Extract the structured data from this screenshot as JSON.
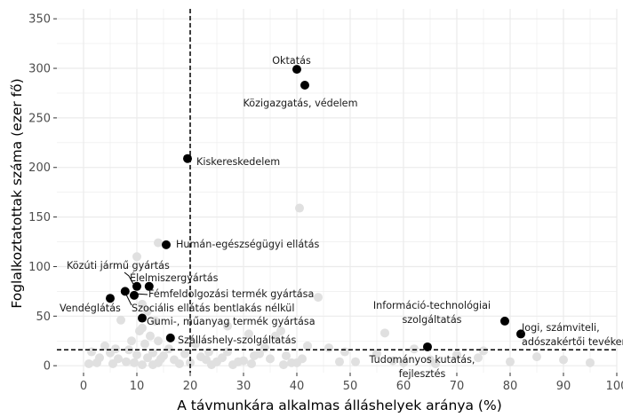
{
  "chart_data": {
    "type": "scatter",
    "xlabel": "A távmunkára alkalmas álláshelyek aránya (%)",
    "ylabel": "Foglalkoztatottak száma (ezer fő)",
    "xlim": [
      -5,
      100
    ],
    "ylim": [
      -7,
      360
    ],
    "x_ticks": [
      0,
      10,
      20,
      30,
      40,
      50,
      60,
      70,
      80,
      90,
      100
    ],
    "y_ticks": [
      0,
      50,
      100,
      150,
      200,
      250,
      300,
      350
    ],
    "grid": true,
    "reference_lines": {
      "vertical_x": 20,
      "horizontal_y": 16
    },
    "colors": {
      "highlight": "#000000",
      "background_points": "#e0e0e0",
      "grid": "#ebebeb"
    },
    "highlighted": [
      {
        "label": "Oktatás",
        "x": 40,
        "y": 299
      },
      {
        "label": "Közigazgatás, védelem",
        "x": 41.5,
        "y": 283
      },
      {
        "label": "Kiskereskedelem",
        "x": 19.5,
        "y": 209
      },
      {
        "label": "Humán-egészségügyi ellátás",
        "x": 15.5,
        "y": 122
      },
      {
        "label": "Közúti jármű gyártás",
        "x": 10,
        "y": 80
      },
      {
        "label": "Élelmiszergyártás",
        "x": 12.3,
        "y": 80
      },
      {
        "label": "Fémfeldolgozási termék gyártása",
        "x": 9.5,
        "y": 71
      },
      {
        "label": "Szociális ellátás bentlakás nélkül",
        "x": 7.8,
        "y": 75
      },
      {
        "label": "Vendéglátás",
        "x": 5,
        "y": 68
      },
      {
        "label": "Gumi-, műanyag termék gyártása",
        "x": 11,
        "y": 48
      },
      {
        "label": "Szálláshely-szolgáltatás",
        "x": 16.3,
        "y": 28
      },
      {
        "label": "Információ-technológiai szolgáltatás",
        "x": 79,
        "y": 45
      },
      {
        "label": "Jogi, számviteli, adószakértői tevékenység",
        "x": 82,
        "y": 32
      },
      {
        "label": "Tudományos kutatás, fejlesztés",
        "x": 64.5,
        "y": 19
      }
    ],
    "background": {
      "x": [
        1,
        1.5,
        2.5,
        3,
        4,
        5,
        5.5,
        6,
        6.5,
        7,
        8,
        8.5,
        9,
        9.5,
        10,
        10.5,
        11,
        11,
        11.5,
        12,
        12,
        12.5,
        13,
        13,
        13.5,
        14,
        14,
        14.5,
        15,
        16,
        17,
        18,
        19,
        20,
        21,
        22,
        23,
        23.5,
        24,
        25,
        26,
        27,
        28,
        29,
        30,
        31,
        31.5,
        32,
        33,
        34,
        35,
        36,
        37,
        37.5,
        38,
        39,
        40,
        41,
        42,
        44,
        46,
        48,
        49,
        51,
        55,
        56.5,
        58,
        60,
        62,
        65,
        66,
        70,
        74,
        75,
        80,
        85,
        90,
        95,
        40.5,
        10,
        11,
        14,
        27
      ],
      "y": [
        2,
        14,
        3,
        8,
        20,
        13,
        2,
        17,
        7,
        46,
        4,
        16,
        25,
        3,
        11,
        35,
        1,
        38,
        22,
        8,
        55,
        30,
        1,
        13,
        45,
        3,
        25,
        7,
        10,
        17,
        6,
        2,
        12,
        3,
        22,
        9,
        6,
        14,
        1,
        4,
        8,
        14,
        1,
        4,
        5,
        32,
        2,
        10,
        12,
        18,
        7,
        30,
        35,
        1,
        10,
        3,
        3,
        7,
        20,
        69,
        18,
        4,
        14,
        4,
        12,
        33,
        5,
        3,
        17,
        6,
        2,
        11,
        8,
        15,
        4,
        9,
        6,
        3,
        159,
        110,
        62,
        124,
        40
      ]
    }
  }
}
